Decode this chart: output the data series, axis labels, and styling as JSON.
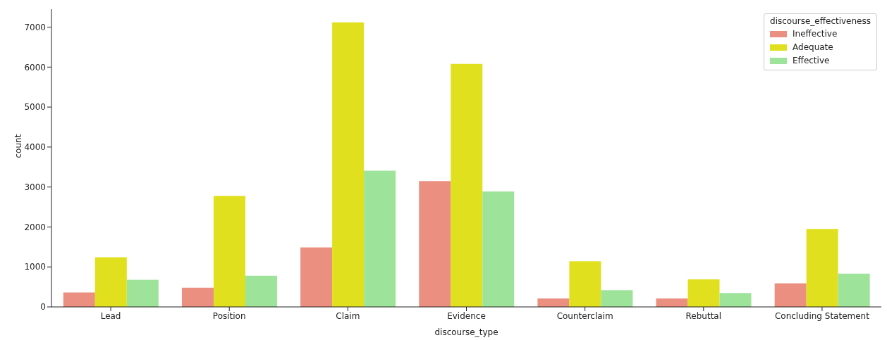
{
  "chart_data": {
    "type": "bar",
    "xlabel": "discourse_type",
    "ylabel": "count",
    "legend_title": "discourse_effectiveness",
    "legend": "top right",
    "categories": [
      "Lead",
      "Position",
      "Claim",
      "Evidence",
      "Counterclaim",
      "Rebuttal",
      "Concluding Statement"
    ],
    "series": [
      {
        "name": "Ineffective",
        "color": "#eb8f80",
        "values": [
          360,
          480,
          1490,
          3150,
          210,
          210,
          590
        ]
      },
      {
        "name": "Adequate",
        "color": "#e0e01e",
        "values": [
          1240,
          2780,
          7120,
          6080,
          1140,
          690,
          1950
        ]
      },
      {
        "name": "Effective",
        "color": "#9ee39a",
        "values": [
          680,
          780,
          3410,
          2890,
          420,
          350,
          830
        ]
      }
    ],
    "ylim": [
      0,
      7450
    ],
    "yticks": [
      0,
      1000,
      2000,
      3000,
      4000,
      5000,
      6000,
      7000
    ]
  }
}
